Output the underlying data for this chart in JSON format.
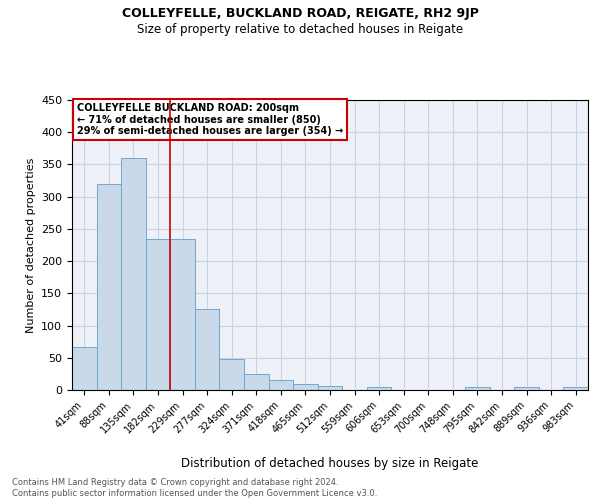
{
  "title": "COLLEYFELLE, BUCKLAND ROAD, REIGATE, RH2 9JP",
  "subtitle": "Size of property relative to detached houses in Reigate",
  "xlabel": "Distribution of detached houses by size in Reigate",
  "ylabel": "Number of detached properties",
  "footer_line1": "Contains HM Land Registry data © Crown copyright and database right 2024.",
  "footer_line2": "Contains public sector information licensed under the Open Government Licence v3.0.",
  "annotation_line1": "COLLEYFELLE BUCKLAND ROAD: 200sqm",
  "annotation_line2": "← 71% of detached houses are smaller (850)",
  "annotation_line3": "29% of semi-detached houses are larger (354) →",
  "bar_labels": [
    "41sqm",
    "88sqm",
    "135sqm",
    "182sqm",
    "229sqm",
    "277sqm",
    "324sqm",
    "371sqm",
    "418sqm",
    "465sqm",
    "512sqm",
    "559sqm",
    "606sqm",
    "653sqm",
    "700sqm",
    "748sqm",
    "795sqm",
    "842sqm",
    "889sqm",
    "936sqm",
    "983sqm"
  ],
  "bar_values": [
    67,
    320,
    360,
    235,
    235,
    125,
    48,
    25,
    16,
    10,
    6,
    0,
    5,
    0,
    0,
    0,
    4,
    0,
    4,
    0,
    4
  ],
  "bar_color": "#c9d9ea",
  "bar_edge_color": "#6fa8d0",
  "vline_x": 3.5,
  "vline_color": "#cc0000",
  "grid_color": "#c8d4e3",
  "background_color": "#eef2f8",
  "ylim": [
    0,
    450
  ],
  "yticks": [
    0,
    50,
    100,
    150,
    200,
    250,
    300,
    350,
    400,
    450
  ]
}
